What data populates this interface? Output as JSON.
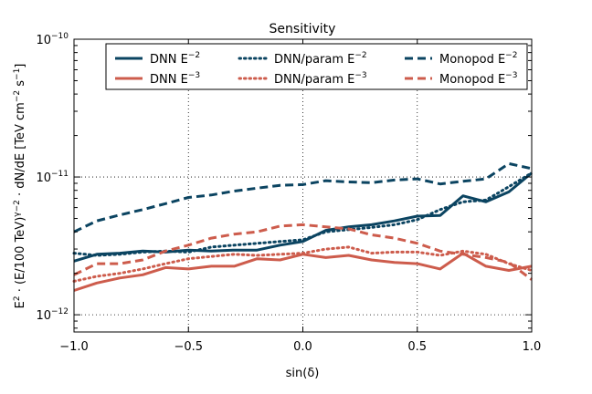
{
  "chart_data": {
    "type": "line",
    "title": "Sensitivity",
    "xlabel": "sin(δ)",
    "ylabel": "E² · (E/100 TeV)ʸ⁻² · dN/dE  [TeV cm⁻² s⁻¹]",
    "ylabel_parts": {
      "main": "E",
      "sq": "2",
      "mid1": " · (E/100 TeV)",
      "gamma": "γ−2",
      "mid2": " · dN/dE  [TeV cm",
      "cm_exp": "−2",
      "mid3": " s",
      "s_exp": "−1",
      "end": "]"
    },
    "xlim": [
      -1.0,
      1.0
    ],
    "ylim": [
      7.5e-13,
      1e-10
    ],
    "yscale": "log",
    "grid": "dotted",
    "legend_position": "top",
    "x_ticks": [
      -1.0,
      -0.5,
      0.0,
      0.5,
      1.0
    ],
    "x_tick_labels": [
      "−1.0",
      "−0.5",
      "0.0",
      "0.5",
      "1.0"
    ],
    "y_ticks": [
      1e-12,
      1e-11,
      1e-10
    ],
    "y_tick_labels": [
      {
        "base": "10",
        "exp": "−12"
      },
      {
        "base": "10",
        "exp": "−11"
      },
      {
        "base": "10",
        "exp": "−10"
      }
    ],
    "x": [
      -1.0,
      -0.9,
      -0.8,
      -0.7,
      -0.6,
      -0.5,
      -0.4,
      -0.3,
      -0.2,
      -0.1,
      0.0,
      0.1,
      0.2,
      0.3,
      0.4,
      0.5,
      0.6,
      0.7,
      0.8,
      0.9,
      1.0
    ],
    "series": [
      {
        "name": "DNN E⁻²",
        "label_base": "DNN E",
        "label_exp": "−2",
        "color": "#0b4461",
        "style": "solid",
        "values": [
          2.45e-12,
          2.75e-12,
          2.8e-12,
          2.9e-12,
          2.85e-12,
          2.95e-12,
          2.9e-12,
          2.95e-12,
          2.95e-12,
          3.2e-12,
          3.4e-12,
          4.1e-12,
          4.35e-12,
          4.5e-12,
          4.8e-12,
          5.2e-12,
          5.25e-12,
          7.3e-12,
          6.6e-12,
          7.8e-12,
          1.07e-11
        ]
      },
      {
        "name": "DNN E⁻³",
        "label_base": "DNN E",
        "label_exp": "−3",
        "color": "#cd5c4c",
        "style": "solid",
        "values": [
          1.5e-12,
          1.7e-12,
          1.85e-12,
          1.95e-12,
          2.2e-12,
          2.15e-12,
          2.25e-12,
          2.25e-12,
          2.55e-12,
          2.5e-12,
          2.75e-12,
          2.6e-12,
          2.7e-12,
          2.5e-12,
          2.4e-12,
          2.35e-12,
          2.15e-12,
          2.8e-12,
          2.25e-12,
          2.1e-12,
          2.25e-12
        ]
      },
      {
        "name": "DNN/param E⁻²",
        "label_base": "DNN/param E",
        "label_exp": "−2",
        "color": "#0b4461",
        "style": "dotted",
        "values": [
          2.8e-12,
          2.7e-12,
          2.75e-12,
          2.85e-12,
          2.9e-12,
          2.85e-12,
          3.1e-12,
          3.2e-12,
          3.3e-12,
          3.4e-12,
          3.5e-12,
          4e-12,
          4.15e-12,
          4.3e-12,
          4.5e-12,
          4.9e-12,
          5.8e-12,
          6.6e-12,
          6.8e-12,
          8.5e-12,
          1.07e-11
        ]
      },
      {
        "name": "DNN/param E⁻³",
        "label_base": "DNN/param E",
        "label_exp": "−3",
        "color": "#cd5c4c",
        "style": "dotted",
        "values": [
          1.75e-12,
          1.9e-12,
          2e-12,
          2.15e-12,
          2.35e-12,
          2.55e-12,
          2.65e-12,
          2.75e-12,
          2.7e-12,
          2.75e-12,
          2.8e-12,
          3e-12,
          3.1e-12,
          2.8e-12,
          2.85e-12,
          2.85e-12,
          2.7e-12,
          2.9e-12,
          2.75e-12,
          2.35e-12,
          2.1e-12
        ]
      },
      {
        "name": "Monopod E⁻²",
        "label_base": "Monopod E",
        "label_exp": "−2",
        "color": "#0b4461",
        "style": "dashed",
        "values": [
          4e-12,
          4.8e-12,
          5.3e-12,
          5.8e-12,
          6.4e-12,
          7.1e-12,
          7.4e-12,
          7.9e-12,
          8.3e-12,
          8.7e-12,
          8.8e-12,
          9.4e-12,
          9.2e-12,
          9.1e-12,
          9.5e-12,
          9.7e-12,
          8.9e-12,
          9.3e-12,
          9.7e-12,
          1.25e-11,
          1.15e-11
        ]
      },
      {
        "name": "Monopod E⁻³",
        "label_base": "Monopod E",
        "label_exp": "−3",
        "color": "#cd5c4c",
        "style": "dashed",
        "values": [
          1.95e-12,
          2.35e-12,
          2.35e-12,
          2.5e-12,
          2.9e-12,
          3.2e-12,
          3.6e-12,
          3.85e-12,
          4e-12,
          4.4e-12,
          4.5e-12,
          4.35e-12,
          4.2e-12,
          3.8e-12,
          3.6e-12,
          3.3e-12,
          2.9e-12,
          2.75e-12,
          2.6e-12,
          2.4e-12,
          1.8e-12
        ]
      }
    ]
  }
}
